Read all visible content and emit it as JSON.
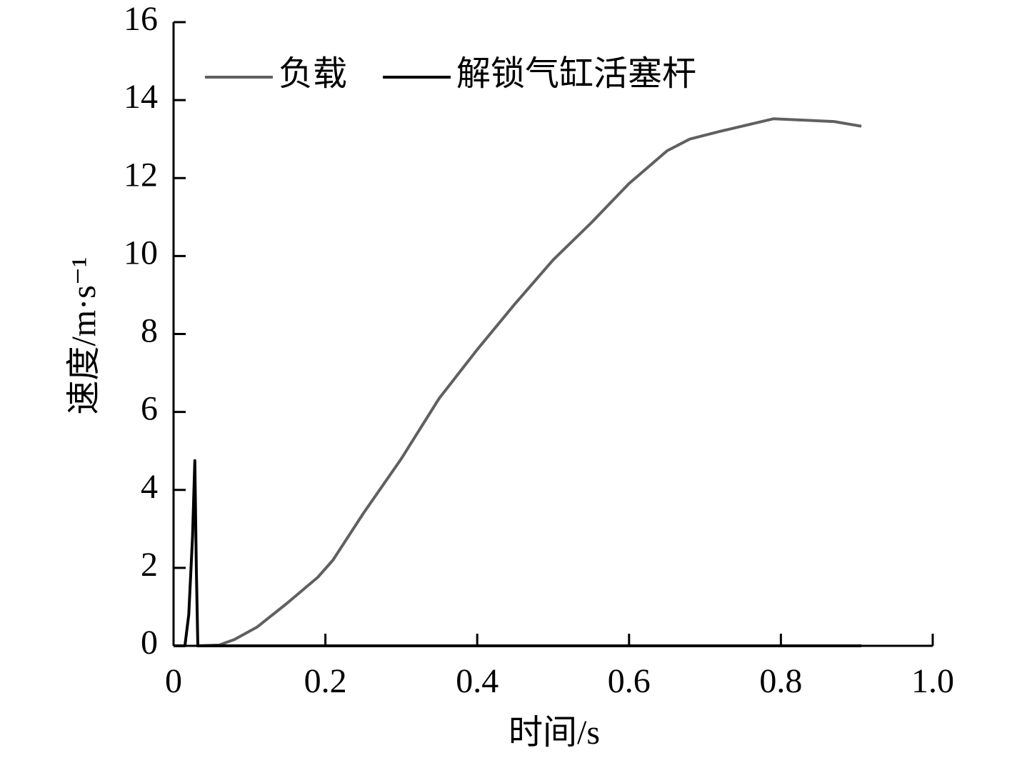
{
  "chart_data": {
    "type": "line",
    "xlabel": "时间/s",
    "ylabel": "速度/m·s⁻¹",
    "xlim": [
      0,
      1
    ],
    "xticks": [
      0,
      0.2,
      0.4,
      0.6,
      0.8,
      {
        "value": 1,
        "label": "1.0"
      }
    ],
    "ylim": [
      0,
      16
    ],
    "yticks": [
      0,
      2,
      4,
      6,
      8,
      10,
      12,
      14,
      16
    ],
    "legend": "top-left",
    "series": [
      {
        "name": "负载",
        "color": "#606060",
        "x": [
          0.03,
          0.06,
          0.08,
          0.11,
          0.15,
          0.19,
          0.21,
          0.25,
          0.3,
          0.35,
          0.4,
          0.45,
          0.5,
          0.55,
          0.6,
          0.65,
          0.68,
          0.72,
          0.79,
          0.87,
          0.906
        ],
        "values": [
          0,
          0.02,
          0.16,
          0.48,
          1.1,
          1.76,
          2.2,
          3.4,
          4.8,
          6.35,
          7.6,
          8.78,
          9.9,
          10.85,
          11.86,
          12.7,
          13.0,
          13.2,
          13.52,
          13.45,
          13.33
        ]
      },
      {
        "name": "解锁气缸活塞杆",
        "color": "#000000",
        "x": [
          0,
          0.015,
          0.02,
          0.025,
          0.028,
          0.03,
          0.032,
          0.906
        ],
        "values": [
          0,
          0,
          0.8,
          2.8,
          4.75,
          2.0,
          0,
          0
        ]
      }
    ]
  }
}
